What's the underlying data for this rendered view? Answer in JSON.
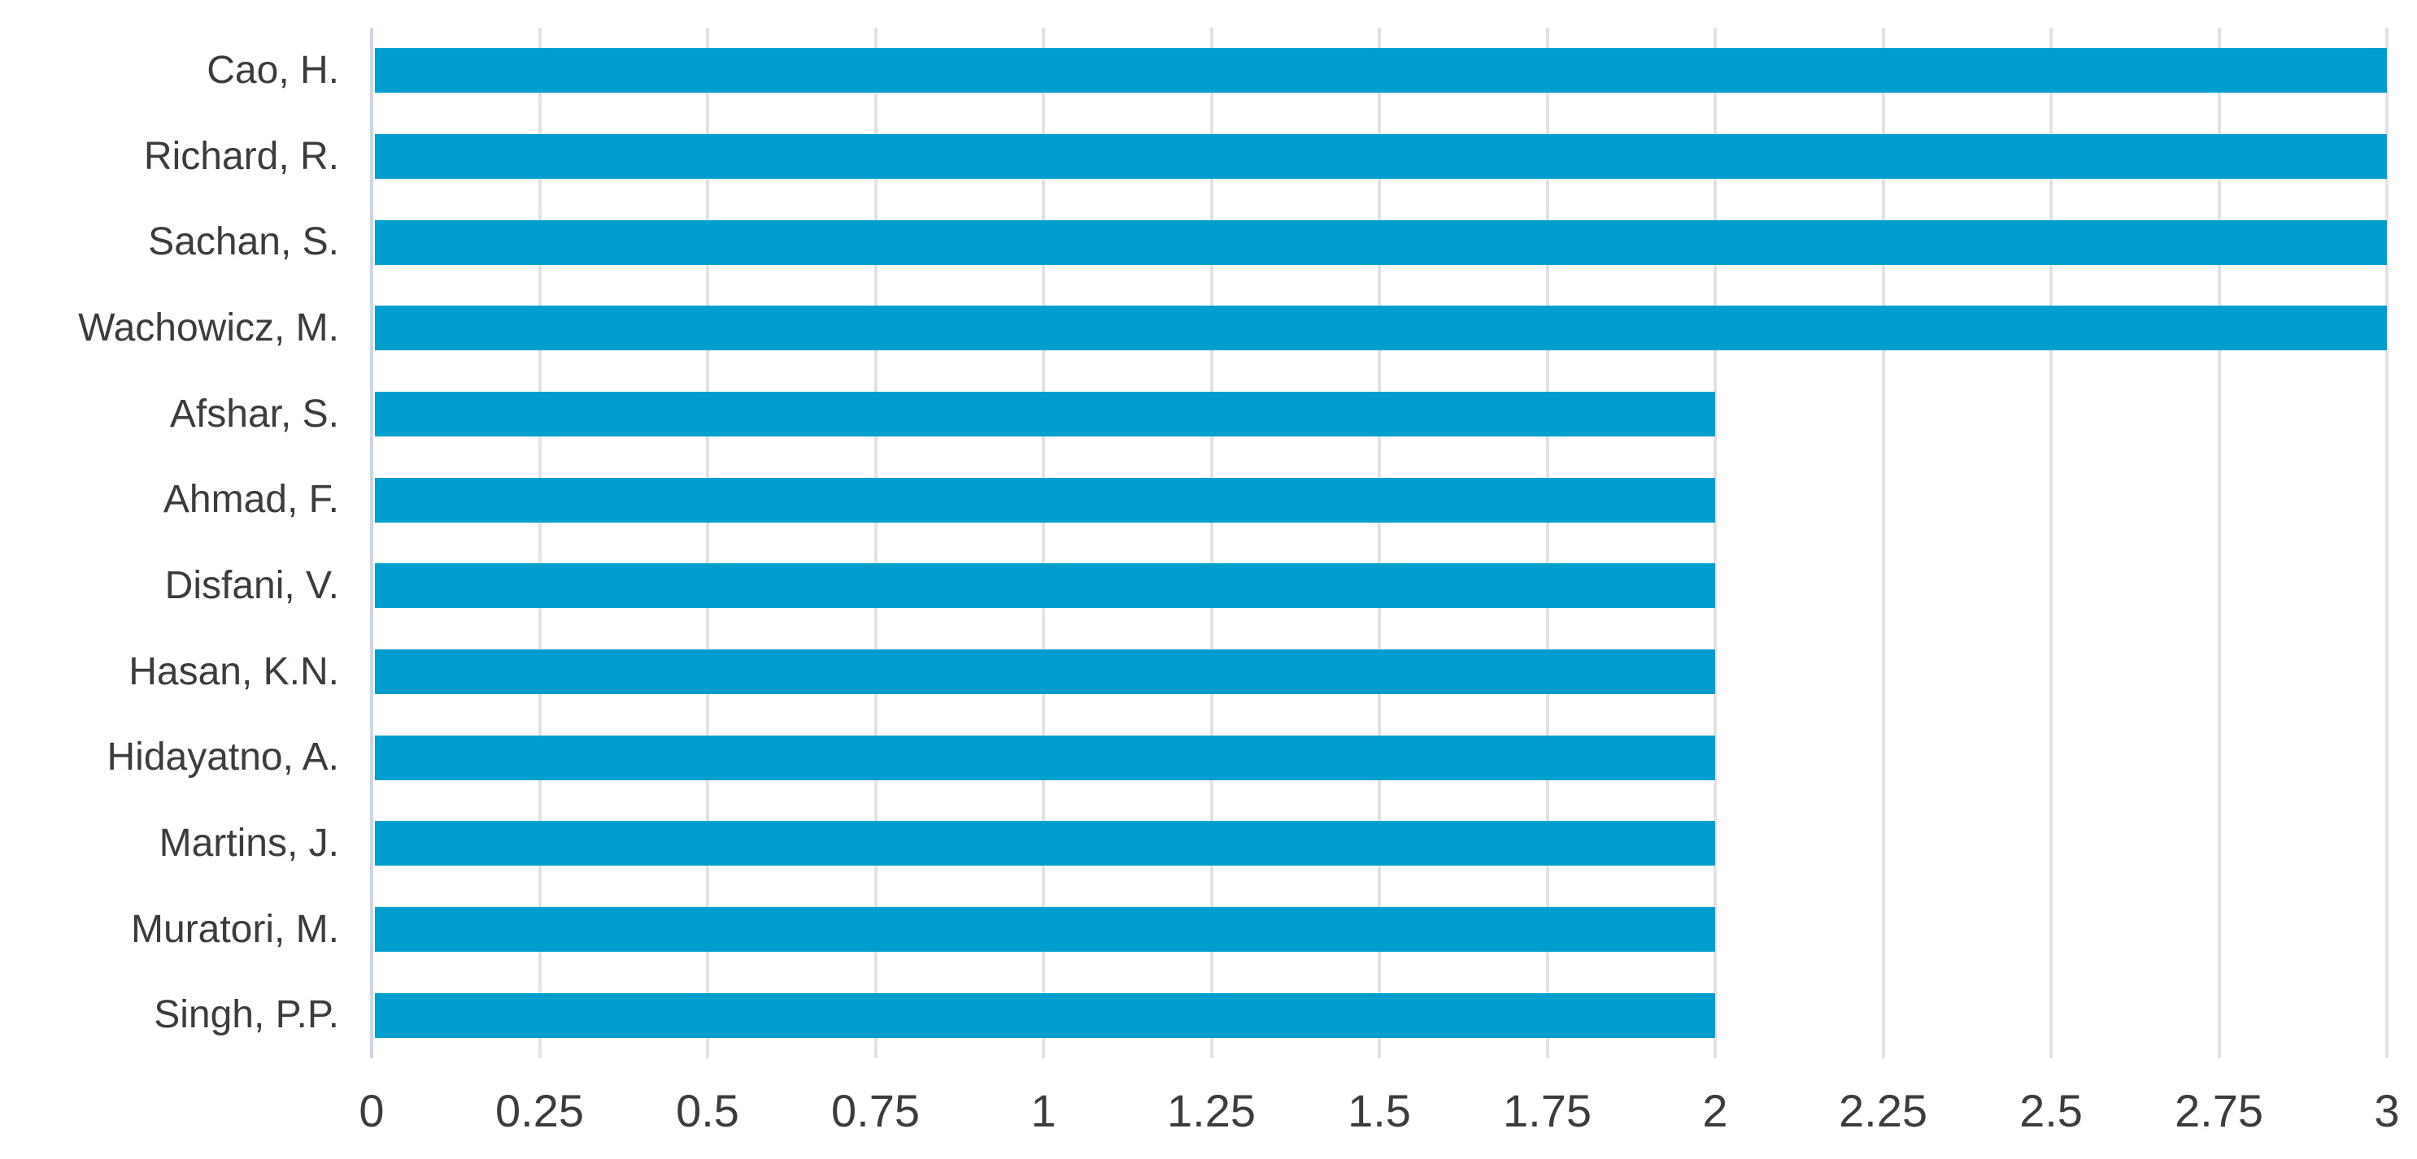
{
  "chart_data": {
    "type": "bar",
    "orientation": "horizontal",
    "title": "",
    "xlabel": "",
    "ylabel": "",
    "categories": [
      "Cao, H.",
      "Richard, R.",
      "Sachan, S.",
      "Wachowicz, M.",
      "Afshar, S.",
      "Ahmad, F.",
      "Disfani, V.",
      "Hasan, K.N.",
      "Hidayatno, A.",
      "Martins, J.",
      "Muratori, M.",
      "Singh, P.P."
    ],
    "values": [
      3,
      3,
      3,
      3,
      2,
      2,
      2,
      2,
      2,
      2,
      2,
      2
    ],
    "xlim": [
      0,
      3
    ],
    "xticks": [
      0,
      0.25,
      0.5,
      0.75,
      1,
      1.25,
      1.5,
      1.75,
      2,
      2.25,
      2.5,
      2.75,
      3
    ],
    "xtick_labels": [
      "0",
      "0.25",
      "0.5",
      "0.75",
      "1",
      "1.25",
      "1.5",
      "1.75",
      "2",
      "2.25",
      "2.5",
      "2.75",
      "3"
    ],
    "grid": true,
    "legend": false,
    "colors": {
      "bar": "#009ecf",
      "gridline": "#e2e2e2",
      "zero_axis_line": "#ccd6e8",
      "text": "#3c3c3c",
      "background": "#ffffff"
    }
  }
}
